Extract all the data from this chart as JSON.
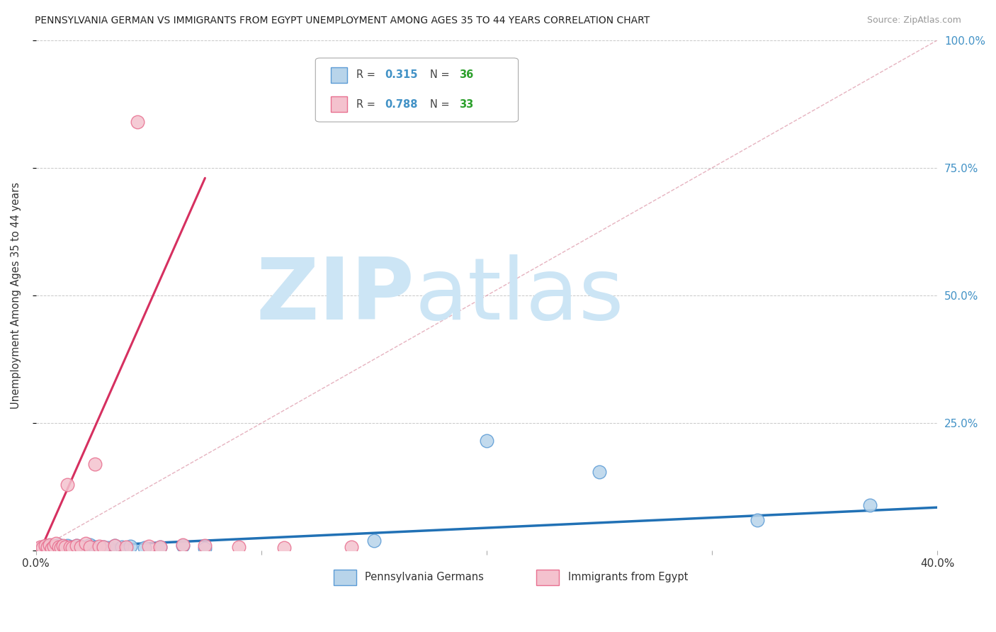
{
  "title": "PENNSYLVANIA GERMAN VS IMMIGRANTS FROM EGYPT UNEMPLOYMENT AMONG AGES 35 TO 44 YEARS CORRELATION CHART",
  "source": "Source: ZipAtlas.com",
  "ylabel": "Unemployment Among Ages 35 to 44 years",
  "xlim": [
    0.0,
    0.4
  ],
  "ylim": [
    0.0,
    1.0
  ],
  "xticks": [
    0.0,
    0.1,
    0.2,
    0.3,
    0.4
  ],
  "xtick_labels": [
    "0.0%",
    "",
    "",
    "",
    "40.0%"
  ],
  "yticks": [
    0.0,
    0.25,
    0.5,
    0.75,
    1.0
  ],
  "ytick_labels_right": [
    "",
    "25.0%",
    "50.0%",
    "75.0%",
    "100.0%"
  ],
  "r_blue": 0.315,
  "n_blue": 36,
  "r_pink": 0.788,
  "n_pink": 33,
  "blue_fill": "#b8d4ea",
  "pink_fill": "#f4c2ce",
  "blue_edge": "#5b9bd5",
  "pink_edge": "#e87090",
  "blue_line_color": "#2171b5",
  "pink_line_color": "#d63060",
  "ref_line_color": "#e0a0b0",
  "background_color": "#ffffff",
  "grid_color": "#c8c8c8",
  "legend_r_color": "#4292c6",
  "legend_n_color": "#2ca02c",
  "blue_scatter_x": [
    0.002,
    0.003,
    0.004,
    0.005,
    0.006,
    0.007,
    0.008,
    0.009,
    0.01,
    0.011,
    0.012,
    0.013,
    0.014,
    0.015,
    0.016,
    0.017,
    0.018,
    0.019,
    0.02,
    0.022,
    0.024,
    0.026,
    0.03,
    0.032,
    0.035,
    0.038,
    0.042,
    0.048,
    0.055,
    0.065,
    0.075,
    0.15,
    0.2,
    0.25,
    0.32,
    0.37
  ],
  "blue_scatter_y": [
    0.005,
    0.008,
    0.004,
    0.006,
    0.01,
    0.007,
    0.005,
    0.009,
    0.012,
    0.006,
    0.008,
    0.005,
    0.01,
    0.007,
    0.004,
    0.008,
    0.011,
    0.006,
    0.009,
    0.005,
    0.012,
    0.007,
    0.008,
    0.006,
    0.01,
    0.007,
    0.009,
    0.006,
    0.008,
    0.01,
    0.005,
    0.02,
    0.215,
    0.155,
    0.06,
    0.09
  ],
  "pink_scatter_x": [
    0.001,
    0.002,
    0.003,
    0.004,
    0.005,
    0.006,
    0.007,
    0.008,
    0.009,
    0.01,
    0.011,
    0.012,
    0.013,
    0.014,
    0.015,
    0.016,
    0.018,
    0.02,
    0.022,
    0.024,
    0.026,
    0.028,
    0.03,
    0.035,
    0.04,
    0.045,
    0.05,
    0.055,
    0.065,
    0.075,
    0.09,
    0.11,
    0.14
  ],
  "pink_scatter_y": [
    0.005,
    0.008,
    0.006,
    0.01,
    0.007,
    0.012,
    0.005,
    0.009,
    0.014,
    0.008,
    0.006,
    0.01,
    0.007,
    0.13,
    0.008,
    0.006,
    0.01,
    0.008,
    0.015,
    0.007,
    0.17,
    0.009,
    0.008,
    0.01,
    0.007,
    0.84,
    0.009,
    0.008,
    0.012,
    0.01,
    0.008,
    0.006,
    0.007
  ],
  "blue_trend_x": [
    0.0,
    0.4
  ],
  "blue_trend_y": [
    0.005,
    0.085
  ],
  "pink_trend_x": [
    0.002,
    0.075
  ],
  "pink_trend_y": [
    0.002,
    0.73
  ],
  "ref_line_x": [
    0.0,
    0.4
  ],
  "ref_line_y": [
    0.0,
    1.0
  ],
  "watermark_zip": "ZIP",
  "watermark_atlas": "atlas",
  "watermark_color": "#cce5f5"
}
